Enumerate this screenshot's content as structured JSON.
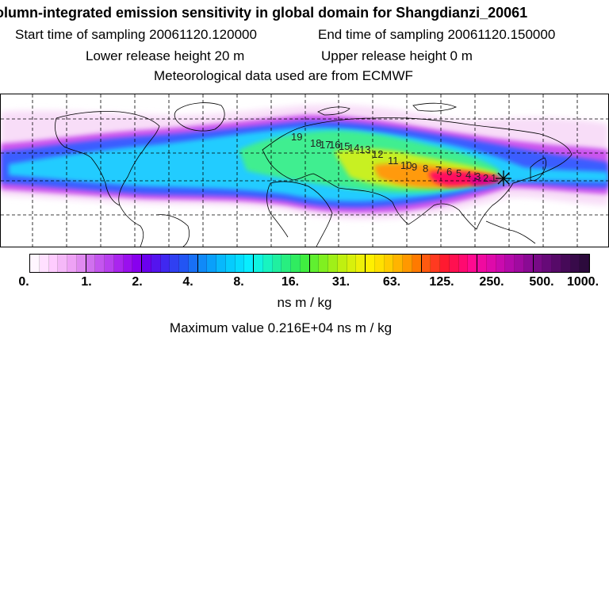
{
  "header": {
    "title": "olumn-integrated emission sensitivity in global domain for Shangdianzi_20061",
    "start_time": "Start time of sampling 20061120.120000",
    "end_time": "End time of sampling 20061120.150000",
    "lower_release": "Lower release height   20 m",
    "upper_release": "Upper release height    0 m",
    "met_data": "Meteorological data used are from ECMWF"
  },
  "map": {
    "station_marker": "star-cross",
    "contour_labels": [
      "19",
      "18",
      "17",
      "16",
      "15",
      "14",
      "13",
      "12",
      "11",
      "10",
      "9",
      "8",
      "7",
      "6",
      "5",
      "4",
      "3",
      "2",
      "1"
    ],
    "plume_colors": [
      "#f8ddf8",
      "#cc55ee",
      "#3a5dff",
      "#22ccff",
      "#40ee90",
      "#c8f020",
      "#ff9a10",
      "#ff1060",
      "#d80090"
    ]
  },
  "colorbar": {
    "ticks": [
      "0.",
      "1.",
      "2.",
      "4.",
      "8.",
      "16.",
      "31.",
      "63.",
      "125.",
      "250.",
      "500.",
      "1000."
    ],
    "colors": [
      "#fff6ff",
      "#ffe0ff",
      "#ffccff",
      "#f5b8f8",
      "#eea2f5",
      "#e08af0",
      "#d070ee",
      "#c456ee",
      "#b840ee",
      "#aa25ee",
      "#9a10ee",
      "#8800ee",
      "#6a00ee",
      "#5414ee",
      "#4028f0",
      "#3040f2",
      "#2255f4",
      "#1870f6",
      "#108af8",
      "#0aa0fa",
      "#08b8fc",
      "#06ccfd",
      "#06dcfe",
      "#08eeff",
      "#10f4e0",
      "#18f4c0",
      "#20f0a0",
      "#28ee80",
      "#30ec60",
      "#40ee40",
      "#60f030",
      "#80f020",
      "#a0f018",
      "#c0f010",
      "#d8f00c",
      "#eef008",
      "#fff000",
      "#ffe000",
      "#ffcc00",
      "#ffb400",
      "#ff9800",
      "#ff7a00",
      "#ff5a10",
      "#ff3a20",
      "#ff1a30",
      "#ff1050",
      "#ff0a70",
      "#ff0a90",
      "#f00aa0",
      "#de0aaa",
      "#ca0aae",
      "#b40aaa",
      "#a00aa0",
      "#8a0a94",
      "#780a86",
      "#660a78",
      "#560a68",
      "#460a58",
      "#380a4a",
      "#2c0a3c"
    ]
  },
  "unit": "ns m / kg",
  "max_value": "Maximum value  0.216E+04 ns m / kg"
}
